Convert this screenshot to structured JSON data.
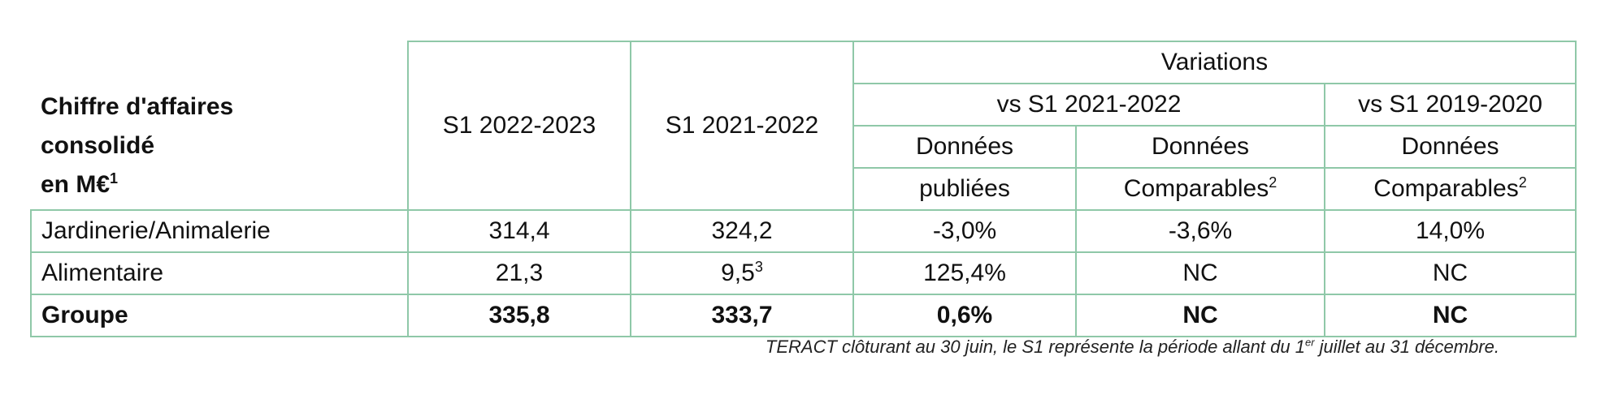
{
  "header": {
    "label_lines": [
      "Chiffre d'affaires",
      "consolidé",
      "en M€"
    ],
    "label_sup": "1",
    "col_current": "S1 2022-2023",
    "col_previous": "S1 2021-2022",
    "variations": "Variations",
    "vs_prev": "vs S1 2021-2022",
    "vs_2019": "vs S1 2019-2020",
    "donnees": "Données",
    "publiees": "publiées",
    "comparables": "Comparables",
    "comparables_sup": "2"
  },
  "rows": [
    {
      "label": "Jardinerie/Animalerie",
      "s1_2022_2023": "314,4",
      "s1_2021_2022": "324,2",
      "s1_2021_2022_sup": "",
      "var_published": "-3,0%",
      "var_comparable": "-3,6%",
      "var_comparable_2019": "14,0%"
    },
    {
      "label": "Alimentaire",
      "s1_2022_2023": "21,3",
      "s1_2021_2022": "9,5",
      "s1_2021_2022_sup": "3",
      "var_published": "125,4%",
      "var_comparable": "NC",
      "var_comparable_2019": "NC"
    },
    {
      "label": "Groupe",
      "s1_2022_2023": "335,8",
      "s1_2021_2022": "333,7",
      "s1_2021_2022_sup": "",
      "var_published": "0,6%",
      "var_comparable": "NC",
      "var_comparable_2019": "NC"
    }
  ],
  "footnote": {
    "before": "TERACT clôturant au 30 juin, le S1 représente la période allant du 1",
    "sup": "er",
    "after": " juillet au 31 décembre."
  }
}
